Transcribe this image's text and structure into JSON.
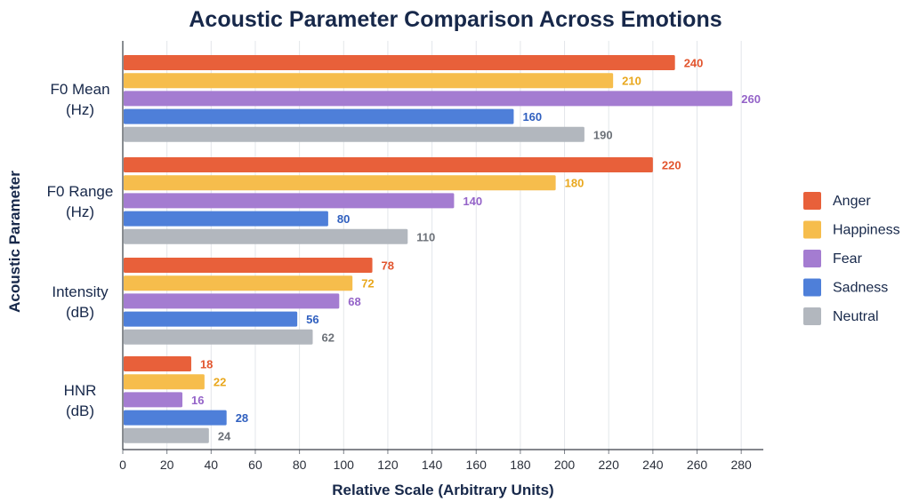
{
  "chart_data": {
    "type": "bar",
    "orientation": "horizontal",
    "title": "Acoustic Parameter Comparison Across Emotions",
    "xlabel": "Relative Scale (Arbitrary Units)",
    "ylabel": "Acoustic Parameter",
    "categories": [
      [
        "F0 Mean",
        "(Hz)"
      ],
      [
        "F0 Range",
        "(Hz)"
      ],
      [
        "Intensity",
        "(dB)"
      ],
      [
        "HNR",
        "(dB)"
      ]
    ],
    "xlim": [
      0,
      290
    ],
    "xticks": [
      0,
      20,
      40,
      60,
      80,
      100,
      120,
      140,
      160,
      180,
      200,
      220,
      240,
      260,
      280
    ],
    "grid": true,
    "legend_position": "right",
    "series": [
      {
        "name": "Anger",
        "color": "#E8603A",
        "label_color": "#E2552E",
        "bar_values": [
          250,
          240,
          113,
          31
        ],
        "labels": [
          "240",
          "220",
          "78",
          "18"
        ]
      },
      {
        "name": "Happiness",
        "color": "#F6BD4C",
        "label_color": "#E9A71C",
        "bar_values": [
          222,
          196,
          104,
          37
        ],
        "labels": [
          "210",
          "180",
          "72",
          "22"
        ]
      },
      {
        "name": "Fear",
        "color": "#A47CD1",
        "label_color": "#9463C8",
        "bar_values": [
          276,
          150,
          98,
          27
        ],
        "labels": [
          "260",
          "140",
          "68",
          "16"
        ]
      },
      {
        "name": "Sadness",
        "color": "#4E7FD9",
        "label_color": "#2F5FBF",
        "bar_values": [
          177,
          93,
          79,
          47
        ],
        "labels": [
          "160",
          "80",
          "56",
          "28"
        ]
      },
      {
        "name": "Neutral",
        "color": "#B2B7BE",
        "label_color": "#6C7178",
        "bar_values": [
          209,
          129,
          86,
          39
        ],
        "labels": [
          "190",
          "110",
          "62",
          "24"
        ]
      }
    ]
  }
}
